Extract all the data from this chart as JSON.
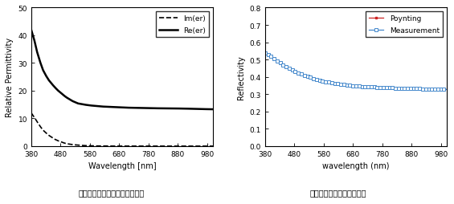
{
  "left": {
    "title": "シリコンの比誘電率の分散特性",
    "ylabel": "Relative Permittivity",
    "xlabel": "Wavelength [nm]",
    "xlim": [
      380,
      1000
    ],
    "ylim": [
      0,
      50
    ],
    "yticks": [
      0,
      10,
      20,
      30,
      40,
      50
    ],
    "xticks": [
      380,
      480,
      580,
      680,
      780,
      880,
      980
    ],
    "legend_im": "Im(er)",
    "legend_re": "Re(er)",
    "wl": [
      380,
      390,
      400,
      410,
      420,
      430,
      440,
      450,
      460,
      470,
      480,
      490,
      500,
      520,
      540,
      560,
      580,
      600,
      620,
      640,
      660,
      680,
      700,
      720,
      740,
      760,
      780,
      800,
      820,
      840,
      860,
      880,
      900,
      950,
      1000
    ],
    "re_er": [
      42.0,
      38.5,
      34.0,
      30.5,
      27.5,
      25.5,
      23.8,
      22.5,
      21.3,
      20.2,
      19.3,
      18.4,
      17.6,
      16.3,
      15.4,
      15.0,
      14.7,
      14.5,
      14.3,
      14.2,
      14.1,
      14.0,
      13.9,
      13.85,
      13.8,
      13.75,
      13.7,
      13.67,
      13.64,
      13.62,
      13.6,
      13.58,
      13.56,
      13.4,
      13.3
    ],
    "im_er": [
      12.0,
      10.5,
      8.8,
      7.2,
      5.8,
      4.8,
      3.9,
      3.2,
      2.5,
      2.0,
      1.6,
      1.2,
      0.9,
      0.55,
      0.35,
      0.2,
      0.12,
      0.07,
      0.04,
      0.02,
      0.01,
      0.005,
      0.002,
      0.001,
      0.0,
      0.0,
      0.0,
      0.0,
      0.0,
      0.0,
      0.0,
      0.0,
      0.0,
      0.0,
      0.0
    ]
  },
  "right": {
    "title": "シリコン平面基板の反射率",
    "ylabel": "Reflectivity",
    "xlabel": "wavelength (nm)",
    "xlim": [
      380,
      1000
    ],
    "ylim": [
      0,
      0.8
    ],
    "yticks": [
      0,
      0.1,
      0.2,
      0.3,
      0.4,
      0.5,
      0.6,
      0.7,
      0.8
    ],
    "xticks": [
      380,
      480,
      580,
      680,
      780,
      880,
      980
    ],
    "legend_poynting": "Poynting",
    "legend_measurement": "Measurement",
    "poynting_color": "#cc2222",
    "measurement_color": "#4488cc",
    "wl_refl": [
      380,
      390,
      400,
      410,
      420,
      430,
      440,
      450,
      460,
      470,
      480,
      490,
      500,
      510,
      520,
      530,
      540,
      550,
      560,
      570,
      580,
      590,
      600,
      610,
      620,
      630,
      640,
      650,
      660,
      670,
      680,
      690,
      700,
      720,
      740,
      760,
      780,
      800,
      820,
      840,
      860,
      880,
      900,
      920,
      940,
      960,
      980,
      1000
    ],
    "reflectivity": [
      0.54,
      0.53,
      0.518,
      0.506,
      0.494,
      0.482,
      0.47,
      0.46,
      0.45,
      0.442,
      0.434,
      0.426,
      0.418,
      0.412,
      0.406,
      0.4,
      0.394,
      0.389,
      0.384,
      0.379,
      0.375,
      0.371,
      0.368,
      0.365,
      0.362,
      0.359,
      0.357,
      0.355,
      0.353,
      0.351,
      0.349,
      0.348,
      0.346,
      0.344,
      0.342,
      0.34,
      0.338,
      0.337,
      0.336,
      0.335,
      0.334,
      0.333,
      0.332,
      0.331,
      0.33,
      0.329,
      0.328,
      0.327
    ]
  }
}
